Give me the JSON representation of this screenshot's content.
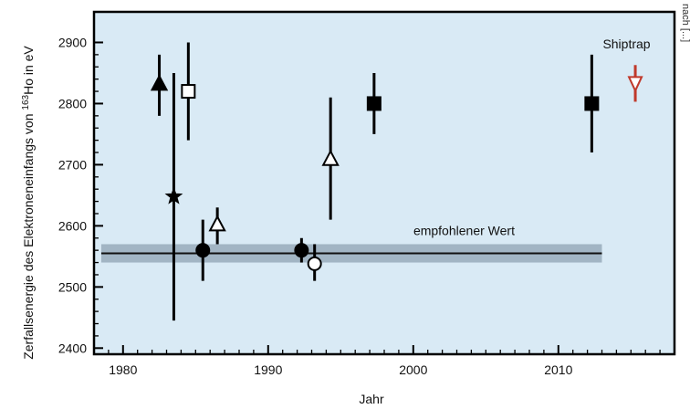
{
  "chart_data": {
    "type": "scatter",
    "xlabel": "Jahr",
    "ylabel_main": "Zerfallsenergie des Elektroneneinfangs von ",
    "ylabel_sup": "163",
    "ylabel_tail": "Ho in eV",
    "xlim": [
      1978,
      2018
    ],
    "ylim": [
      2390,
      2950
    ],
    "x_ticks": [
      1980,
      1990,
      2000,
      2010
    ],
    "y_ticks": [
      2400,
      2500,
      2600,
      2700,
      2800,
      2900
    ],
    "x_tick_labels": [
      "1980",
      "1990",
      "2000",
      "2010"
    ],
    "y_tick_labels": [
      "2400",
      "2500",
      "2600",
      "2700",
      "2800",
      "2900"
    ],
    "grid": false,
    "background_color": "#d9eaf5",
    "recommended_value": {
      "label": "empfohlener Wert",
      "value": 2555,
      "band": [
        2540,
        2570
      ],
      "x_range": [
        1978.5,
        2013
      ]
    },
    "points": [
      {
        "x": 1982.5,
        "y": 2833,
        "err_low": 2780,
        "err_high": 2880,
        "marker": "triangle-up-filled",
        "color": "#000000"
      },
      {
        "x": 1983.5,
        "y": 2648,
        "err_low": 2445,
        "err_high": 2850,
        "marker": "star-filled",
        "color": "#000000"
      },
      {
        "x": 1984.5,
        "y": 2820,
        "err_low": 2740,
        "err_high": 2900,
        "marker": "square-open",
        "color": "#000000"
      },
      {
        "x": 1985.5,
        "y": 2560,
        "err_low": 2510,
        "err_high": 2610,
        "marker": "circle-filled",
        "color": "#000000"
      },
      {
        "x": 1986.5,
        "y": 2603,
        "err_low": 2570,
        "err_high": 2630,
        "marker": "triangle-up-open",
        "color": "#000000"
      },
      {
        "x": 1992.3,
        "y": 2560,
        "err_low": 2540,
        "err_high": 2580,
        "marker": "circle-filled",
        "color": "#000000"
      },
      {
        "x": 1993.2,
        "y": 2538,
        "err_low": 2510,
        "err_high": 2570,
        "marker": "circle-open",
        "color": "#000000"
      },
      {
        "x": 1994.3,
        "y": 2710,
        "err_low": 2610,
        "err_high": 2810,
        "marker": "triangle-up-open",
        "color": "#000000"
      },
      {
        "x": 1997.3,
        "y": 2800,
        "err_low": 2750,
        "err_high": 2850,
        "marker": "square-filled",
        "color": "#000000"
      },
      {
        "x": 2012.3,
        "y": 2800,
        "err_low": 2720,
        "err_high": 2880,
        "marker": "square-filled",
        "color": "#000000"
      },
      {
        "x": 2015.3,
        "y": 2833,
        "err_low": 2803,
        "err_high": 2863,
        "marker": "triangle-down-open",
        "color": "#c0392b"
      }
    ],
    "annotations": [
      {
        "text": "Shiptrap",
        "x": 2014.7,
        "y": 2890
      },
      {
        "text": "empfohlener Wert",
        "x": 2003.5,
        "y": 2585
      }
    ],
    "credit": "nach [...]"
  }
}
